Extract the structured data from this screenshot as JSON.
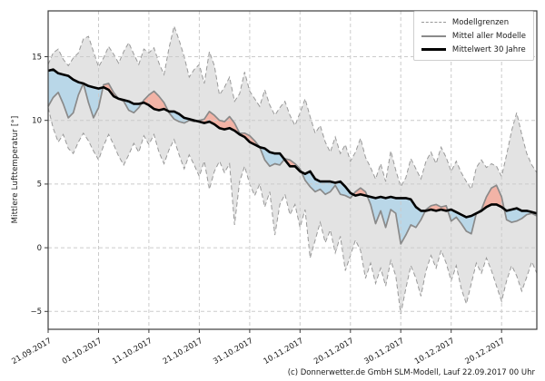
{
  "caption": "(c) Donnerwetter.de GmbH SLM-Modell, Lauf 22.09.2017 00 Uhr",
  "colors": {
    "band_fill": "#e3e3e3",
    "band_edge": "#999999",
    "model_mean_line": "#8a8a8a",
    "climate_mean_line": "#000000",
    "below_fill": "#b9d7e8",
    "above_fill": "#f2b3a6",
    "grid": "#cbcbcb",
    "spine": "#3c3c3c",
    "text": "#1a1a1a"
  },
  "chart_data": {
    "type": "line",
    "title": "",
    "xlabel": "",
    "ylabel": "Mittlere Lufttemperatur [°]",
    "grid": true,
    "legend_position": "top-right",
    "ylim": [
      -6.4,
      18.6
    ],
    "y_ticks": [
      15,
      10,
      5,
      0,
      -5
    ],
    "days": 98,
    "x_start_date": "21.09.2017",
    "x_tick_days": [
      0,
      10,
      20,
      30,
      40,
      50,
      60,
      70,
      80,
      90
    ],
    "x_tick_labels": [
      "21.09.2017",
      "01.10.2017",
      "11.10.2017",
      "21.10.2017",
      "31.10.2017",
      "10.11.2017",
      "20.11.2017",
      "30.11.2017",
      "10.12.2017",
      "20.12.2017"
    ],
    "legend": [
      {
        "label": "Modellgrenzen",
        "style": "dashed-gray"
      },
      {
        "label": "Mittel aller Modelle",
        "style": "solid-gray"
      },
      {
        "label": "Mittelwert 30 Jahre",
        "style": "solid-black-thick"
      }
    ],
    "series": [
      {
        "key": "upper",
        "name": "Modellgrenzen (obere Grenze)",
        "values": [
          14.4,
          15.3,
          15.6,
          14.8,
          14.3,
          14.9,
          15.3,
          16.4,
          16.6,
          15.4,
          14.2,
          14.9,
          15.8,
          15.2,
          14.5,
          15.4,
          16.1,
          15.2,
          14.4,
          15.6,
          15.3,
          15.7,
          14.5,
          13.6,
          15.7,
          17.4,
          16.3,
          15.0,
          13.4,
          14.0,
          14.4,
          12.9,
          15.4,
          14.3,
          12.0,
          12.6,
          13.4,
          11.5,
          12.1,
          13.8,
          12.3,
          11.7,
          11.1,
          12.4,
          11.2,
          10.4,
          11.0,
          11.5,
          10.4,
          9.6,
          10.6,
          11.7,
          10.3,
          9.0,
          9.6,
          8.3,
          7.5,
          8.7,
          7.4,
          8.1,
          6.8,
          7.5,
          8.6,
          7.1,
          6.3,
          5.4,
          6.6,
          5.2,
          7.6,
          6.1,
          4.8,
          5.5,
          7.0,
          6.2,
          5.4,
          6.8,
          7.5,
          6.6,
          7.9,
          7.1,
          6.0,
          6.8,
          5.9,
          5.2,
          4.6,
          6.3,
          6.9,
          6.3,
          6.6,
          6.4,
          5.6,
          7.3,
          9.2,
          10.6,
          8.9,
          7.4,
          6.5,
          5.9
        ]
      },
      {
        "key": "lower",
        "name": "Modellgrenzen (untere Grenze)",
        "values": [
          11.0,
          9.4,
          8.3,
          8.9,
          7.8,
          7.4,
          8.3,
          9.0,
          8.4,
          7.6,
          6.9,
          8.0,
          8.9,
          8.1,
          7.2,
          6.5,
          7.3,
          8.2,
          7.5,
          8.8,
          8.1,
          8.9,
          7.5,
          6.6,
          7.7,
          8.5,
          7.3,
          6.2,
          7.3,
          6.5,
          5.6,
          6.8,
          4.6,
          6.0,
          6.8,
          5.9,
          6.6,
          1.8,
          5.2,
          6.4,
          5.0,
          4.1,
          5.0,
          3.2,
          4.4,
          1.0,
          3.4,
          4.2,
          2.6,
          3.4,
          1.6,
          3.0,
          -0.8,
          0.6,
          2.0,
          0.4,
          1.4,
          -0.4,
          0.9,
          -1.8,
          -0.6,
          0.6,
          -0.2,
          -2.4,
          -1.2,
          -2.8,
          -1.6,
          -3.0,
          -1.0,
          -2.2,
          -5.2,
          -3.2,
          -1.4,
          -2.4,
          -3.8,
          -1.8,
          -0.6,
          -1.6,
          -0.2,
          -1.2,
          -2.6,
          -1.4,
          -3.2,
          -4.4,
          -2.8,
          -1.2,
          -2.0,
          -0.8,
          -1.8,
          -3.0,
          -4.2,
          -2.6,
          -1.4,
          -2.2,
          -3.4,
          -2.3,
          -1.1,
          -2.0
        ]
      },
      {
        "key": "model_mean",
        "name": "Mittel aller Modelle",
        "values": [
          11.1,
          11.8,
          12.2,
          11.3,
          10.2,
          10.6,
          12.0,
          12.9,
          11.4,
          10.2,
          11.0,
          12.8,
          12.9,
          12.2,
          11.7,
          11.5,
          10.8,
          10.6,
          11.0,
          11.6,
          12.0,
          12.3,
          11.9,
          11.4,
          10.6,
          10.1,
          9.9,
          9.8,
          10.0,
          9.9,
          10.0,
          10.1,
          10.7,
          10.4,
          10.0,
          9.9,
          10.3,
          9.8,
          9.0,
          9.0,
          8.8,
          8.4,
          7.9,
          6.9,
          6.4,
          6.6,
          6.5,
          7.0,
          6.9,
          6.6,
          6.2,
          5.3,
          4.8,
          4.4,
          4.6,
          4.2,
          4.4,
          4.9,
          4.2,
          4.1,
          3.9,
          4.4,
          4.7,
          4.4,
          3.4,
          1.9,
          2.9,
          1.6,
          3.0,
          2.7,
          0.3,
          1.0,
          1.8,
          1.6,
          2.2,
          3.0,
          3.3,
          3.4,
          3.2,
          3.3,
          2.1,
          2.4,
          1.9,
          1.3,
          1.1,
          2.7,
          3.0,
          4.0,
          4.7,
          4.9,
          4.0,
          2.2,
          2.0,
          2.1,
          2.3,
          2.6,
          2.7,
          2.5
        ]
      },
      {
        "key": "mean30",
        "name": "Mittelwert 30 Jahre",
        "values": [
          13.9,
          14.0,
          13.7,
          13.6,
          13.5,
          13.2,
          13.0,
          12.9,
          12.7,
          12.6,
          12.5,
          12.6,
          12.4,
          11.9,
          11.7,
          11.6,
          11.5,
          11.3,
          11.3,
          11.4,
          11.2,
          10.9,
          10.8,
          10.9,
          10.7,
          10.7,
          10.5,
          10.2,
          10.1,
          10.0,
          9.9,
          9.8,
          9.9,
          9.7,
          9.4,
          9.3,
          9.4,
          9.2,
          8.9,
          8.7,
          8.3,
          8.1,
          7.9,
          7.8,
          7.5,
          7.4,
          7.4,
          6.9,
          6.4,
          6.4,
          6.0,
          5.8,
          6.0,
          5.4,
          5.2,
          5.2,
          5.2,
          5.1,
          5.2,
          4.8,
          4.3,
          4.1,
          4.2,
          4.1,
          4.0,
          3.9,
          4.0,
          3.9,
          4.0,
          3.9,
          3.9,
          3.9,
          3.8,
          3.2,
          2.9,
          2.9,
          3.0,
          2.9,
          3.0,
          2.9,
          3.0,
          2.8,
          2.6,
          2.4,
          2.5,
          2.7,
          2.9,
          3.2,
          3.4,
          3.4,
          3.2,
          2.9,
          3.0,
          3.1,
          2.9,
          2.9,
          2.8,
          2.7
        ]
      }
    ]
  }
}
